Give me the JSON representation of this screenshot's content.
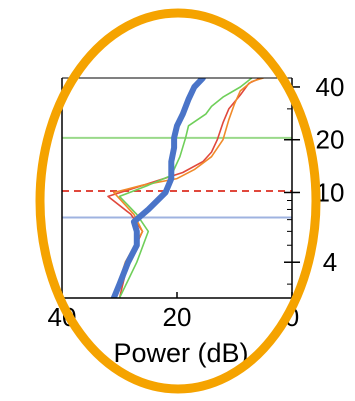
{
  "chart_data": {
    "type": "line",
    "title": "",
    "xlabel": "Power (dB)",
    "ylabel": "",
    "x_reversed": true,
    "y_scale": "log",
    "xlim": [
      40,
      0
    ],
    "ylim": [
      2.5,
      45
    ],
    "x_ticks": [
      {
        "value": 40,
        "label": "40"
      },
      {
        "value": 20,
        "label": "20"
      },
      {
        "value": 0,
        "label": "0"
      }
    ],
    "y_ticks": [
      {
        "value": 40,
        "label": "40"
      },
      {
        "value": 20,
        "label": "20"
      },
      {
        "value": 10,
        "label": "10"
      },
      {
        "value": 4,
        "label": "4"
      }
    ],
    "grid": false,
    "horizontal_lines": [
      {
        "y": 20.5,
        "color": "#9ad98a",
        "style": "solid"
      },
      {
        "y": 10.2,
        "color": "#e0483c",
        "style": "dashed"
      },
      {
        "y": 7.2,
        "color": "#9fb3e0",
        "style": "solid"
      }
    ],
    "series": [
      {
        "color": "#4a74c8",
        "width": "thick",
        "x": [
          31,
          30,
          28.5,
          27,
          27,
          27.5,
          25,
          22,
          21,
          21,
          20.5,
          20.5,
          20,
          19,
          18,
          17,
          15.5
        ],
        "y": [
          2.5,
          3,
          4,
          5,
          6,
          6.8,
          8,
          10,
          12,
          15,
          18,
          20.5,
          24,
          28,
          34,
          40,
          45
        ]
      },
      {
        "color": "#e0483c",
        "width": "thin",
        "x": [
          30,
          28.5,
          26,
          28,
          32,
          24,
          19,
          15.5,
          14,
          13,
          12,
          11,
          9,
          7.5,
          5.5
        ],
        "y": [
          2.5,
          4,
          6,
          7.5,
          9.5,
          11.5,
          13,
          15,
          17,
          20,
          25,
          30,
          36,
          42,
          45
        ]
      },
      {
        "color": "#f08a2a",
        "width": "thin",
        "x": [
          31,
          29,
          26,
          27.5,
          31,
          26,
          20,
          17,
          14,
          12,
          11,
          10,
          9,
          7,
          5
        ],
        "y": [
          2.5,
          4,
          6,
          7.5,
          10,
          11,
          12,
          13.5,
          16,
          20,
          26,
          32,
          38,
          43,
          45
        ]
      },
      {
        "color": "#6fcf5a",
        "width": "thin",
        "x": [
          30,
          27,
          25,
          27,
          30,
          25,
          21,
          19.5,
          18.5,
          18,
          15,
          14,
          12,
          9,
          7
        ],
        "y": [
          2.5,
          4,
          6,
          7.5,
          9.5,
          11,
          12.5,
          16,
          20.5,
          24,
          28,
          31,
          35,
          40,
          45
        ]
      }
    ]
  },
  "overlay": {
    "ellipse_color": "#f5a300"
  }
}
